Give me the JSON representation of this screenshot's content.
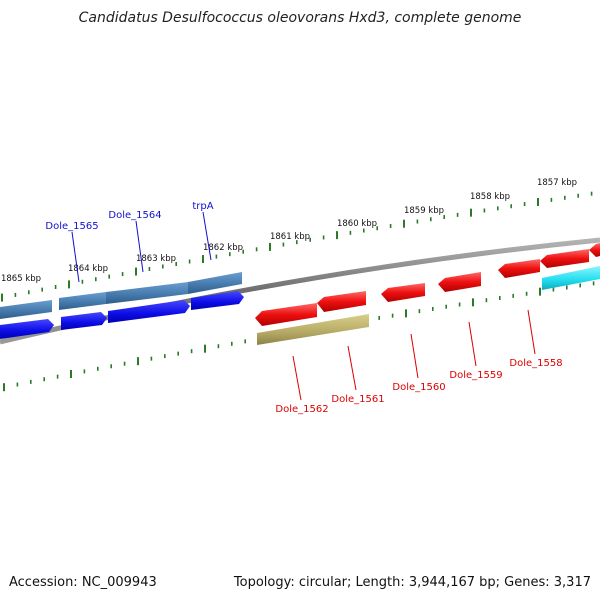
{
  "title": "Candidatus Desulfococcus oleovorans Hxd3, complete genome",
  "accession": "Accession: NC_009943",
  "genome_info": "Topology: circular; Length: 3,944,167 bp; Genes: 3,317",
  "colors": {
    "tick": "#2a7a2a",
    "backbone": "#7a7a7a",
    "forward_gene": "#1111ee",
    "forward_locus": "#4a7fb0",
    "reverse_gene": "#ee1111",
    "reverse_rna": "#b8ae6a",
    "cyan_gene": "#22e0f0",
    "forward_label": "#1111cc",
    "reverse_label": "#dd0000"
  },
  "scale_labels": [
    "1857 kbp",
    "1858 kbp",
    "1859 kbp",
    "1860 kbp",
    "1861 kbp",
    "1862 kbp",
    "1863 kbp",
    "1864 kbp",
    "1865 kbp"
  ],
  "forward_gene_labels": [
    "trpA",
    "Dole_1564",
    "Dole_1565"
  ],
  "reverse_gene_labels": [
    "Dole_1558",
    "Dole_1559",
    "Dole_1560",
    "Dole_1561",
    "Dole_1562"
  ]
}
